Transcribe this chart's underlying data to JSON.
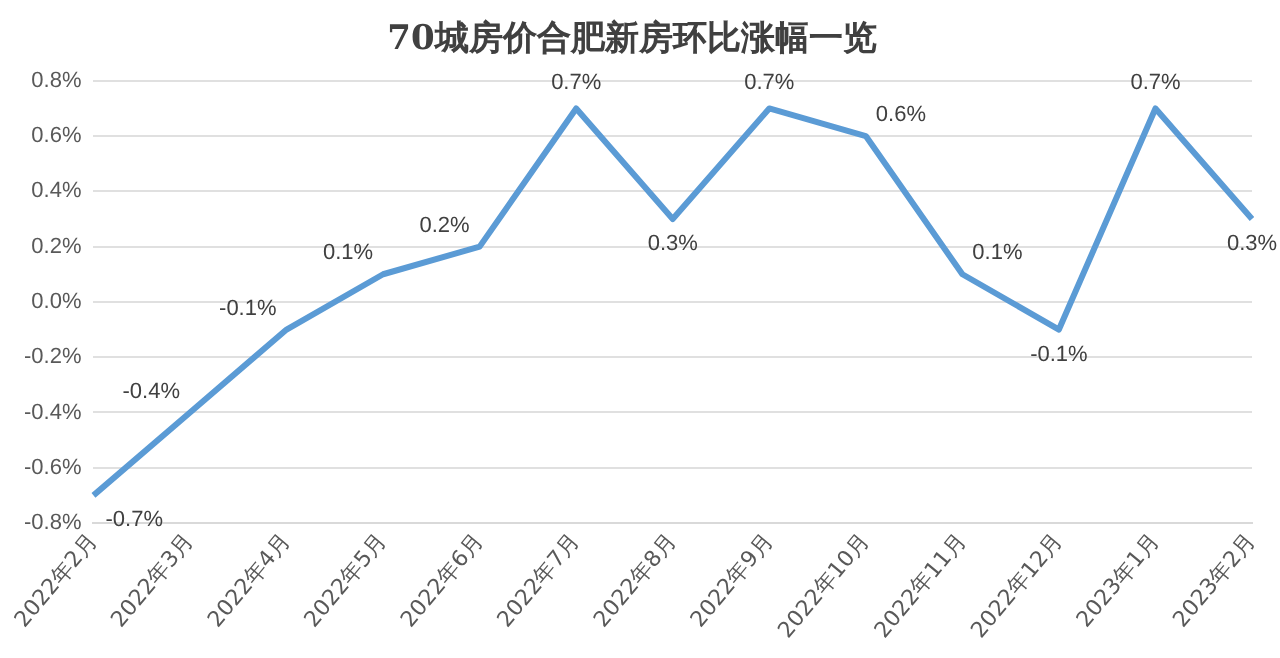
{
  "chart_data": {
    "type": "line",
    "title": "70城房价合肥新房环比涨幅一览",
    "categories": [
      "2022年2月",
      "2022年3月",
      "2022年4月",
      "2022年5月",
      "2022年6月",
      "2022年7月",
      "2022年8月",
      "2022年9月",
      "2022年10月",
      "2022年11月",
      "2022年12月",
      "2023年1月",
      "2023年2月"
    ],
    "series": [
      {
        "color": "#5b9bd5",
        "values": [
          -0.7,
          -0.4,
          -0.1,
          0.1,
          0.2,
          0.7,
          0.3,
          0.7,
          0.6,
          0.1,
          -0.1,
          0.7,
          0.3
        ],
        "value_labels": [
          "-0.7%",
          "-0.4%",
          "-0.1%",
          "0.1%",
          "0.2%",
          "0.7%",
          "0.3%",
          "0.7%",
          "0.6%",
          "0.1%",
          "-0.1%",
          "0.7%",
          "0.3%"
        ]
      }
    ],
    "ylim": [
      -0.8,
      0.8
    ],
    "yticks": [
      {
        "value": -0.8,
        "label": "-0.8%"
      },
      {
        "value": -0.6,
        "label": "-0.6%"
      },
      {
        "value": -0.4,
        "label": "-0.4%"
      },
      {
        "value": -0.2,
        "label": "-0.2%"
      },
      {
        "value": 0,
        "label": "0.0%"
      },
      {
        "value": 0.2,
        "label": "0.2%"
      },
      {
        "value": 0.4,
        "label": "0.4%"
      },
      {
        "value": 0.6,
        "label": "0.6%"
      },
      {
        "value": 0.8,
        "label": "0.8%"
      }
    ],
    "grid": "y",
    "marker": "none",
    "line_style": "solid",
    "legend": false
  }
}
